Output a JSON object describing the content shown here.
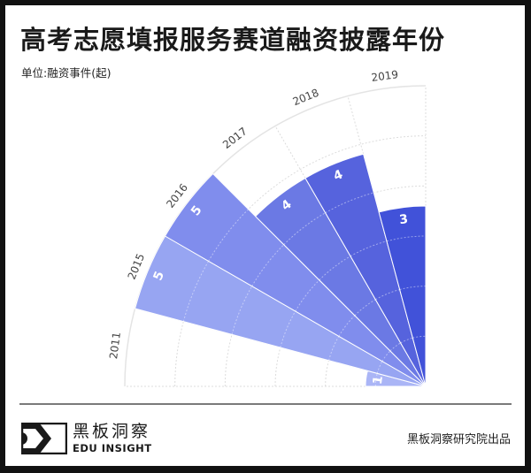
{
  "header": {
    "title": "高考志愿填报服务赛道融资披露年份",
    "unit": "单位:融资事件(起)"
  },
  "footer": {
    "logo_cn": "黑板洞察",
    "logo_en": "EDU INSIGHT",
    "credit": "黑板洞察研究院出品"
  },
  "chart_data": {
    "type": "bar",
    "subtype": "polar-quarter-rose",
    "title": "高考志愿填报服务赛道融资披露年份",
    "subtitle": "单位:融资事件(起)",
    "xlabel": "",
    "ylabel": "融资事件(起)",
    "categories": [
      "2011",
      "2015",
      "2016",
      "2017",
      "2018",
      "2019"
    ],
    "values": [
      1,
      5,
      5,
      4,
      4,
      3
    ],
    "colors": [
      "#aab5f6",
      "#97a5f2",
      "#808ded",
      "#6b79e4",
      "#5663dd",
      "#4152d9"
    ],
    "rlim": [
      0,
      5.1
    ],
    "grid": true,
    "legend": "none",
    "angular_span_degrees": 90
  }
}
